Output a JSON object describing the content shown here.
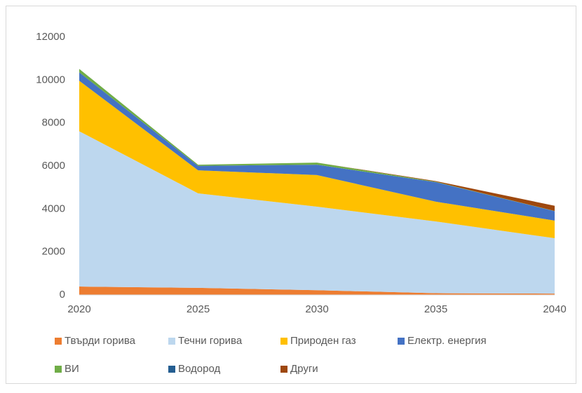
{
  "chart_data": {
    "type": "stacked_area",
    "categories": [
      "2020",
      "2025",
      "2030",
      "2035",
      "2040"
    ],
    "series": [
      {
        "name": "Твърди горива",
        "color": "#ED7D31",
        "values": [
          390,
          330,
          220,
          80,
          60
        ]
      },
      {
        "name": "Течни горива",
        "color": "#BDD7EE",
        "values": [
          7230,
          4400,
          3890,
          3340,
          2580
        ]
      },
      {
        "name": "Природен газ",
        "color": "#FFC000",
        "values": [
          2350,
          1070,
          1470,
          920,
          820
        ]
      },
      {
        "name": "Електр. енергия",
        "color": "#4472C4",
        "values": [
          390,
          210,
          480,
          910,
          440
        ]
      },
      {
        "name": "ВИ",
        "color": "#70AD47",
        "values": [
          160,
          50,
          100,
          20,
          10
        ]
      },
      {
        "name": "Водород",
        "color": "#255E91",
        "values": [
          0,
          0,
          0,
          0,
          0
        ]
      },
      {
        "name": "Други",
        "color": "#9E480E",
        "values": [
          0,
          0,
          0,
          30,
          240
        ]
      }
    ],
    "ylim": [
      0,
      12000
    ],
    "yticks": [
      0,
      2000,
      4000,
      6000,
      8000,
      10000,
      12000
    ],
    "grid": false
  }
}
